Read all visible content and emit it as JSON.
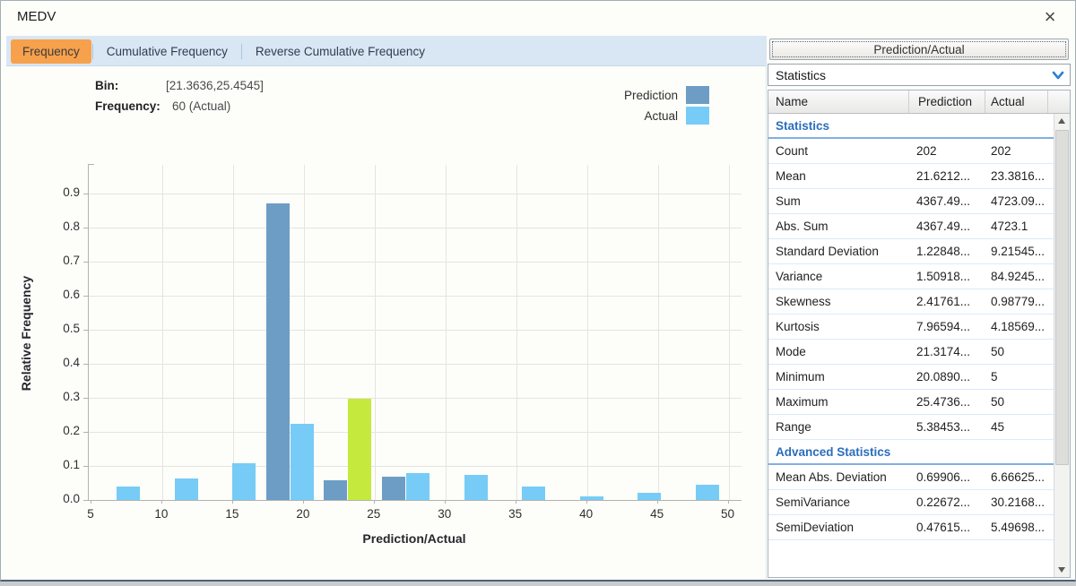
{
  "window": {
    "title": "MEDV",
    "close_icon": "×"
  },
  "colors": {
    "accent_orange": "#F7A14C",
    "prediction": "#6D9DC5",
    "actual": "#76CCF6",
    "highlight": "#C6E93E",
    "tabstrip_bg": "#D9E6F3",
    "section_text": "#2A6EBB"
  },
  "tabs": [
    {
      "label": "Frequency",
      "active": true
    },
    {
      "label": "Cumulative Frequency",
      "active": false
    },
    {
      "label": "Reverse Cumulative Frequency",
      "active": false
    }
  ],
  "info": {
    "bin_label": "Bin:",
    "bin_value": "[21.3636,25.4545]",
    "freq_label": "Frequency:",
    "freq_value": "60 (Actual)"
  },
  "legend": [
    {
      "label": "Prediction",
      "color": "#6D9DC5"
    },
    {
      "label": "Actual",
      "color": "#76CCF6"
    }
  ],
  "chart_data": {
    "type": "bar",
    "title": "",
    "xlabel": "Prediction/Actual",
    "ylabel": "Relative Frequency",
    "xlim": [
      5,
      50
    ],
    "ylim": [
      0,
      0.984
    ],
    "grid": true,
    "x_ticks": [
      5,
      10,
      15,
      20,
      25,
      30,
      35,
      40,
      45,
      50
    ],
    "y_ticks": [
      0.0,
      0.1,
      0.2,
      0.3,
      0.4,
      0.5,
      0.6,
      0.7,
      0.8,
      0.9
    ],
    "bin_edges": [
      5.0,
      9.0909,
      13.1818,
      17.2727,
      21.3636,
      25.4545,
      29.5455,
      33.6364,
      37.7273,
      41.8182,
      45.9091,
      50.0
    ],
    "series": [
      {
        "name": "Prediction",
        "color": "#6D9DC5",
        "values": [
          0,
          0,
          0,
          0.871,
          0.059,
          0.069,
          0,
          0,
          0,
          0,
          0
        ]
      },
      {
        "name": "Actual",
        "color": "#76CCF6",
        "values": [
          0.04,
          0.064,
          0.109,
          0.223,
          0.297,
          0.079,
          0.074,
          0.04,
          0.01,
          0.02,
          0.045
        ]
      }
    ],
    "highlight": {
      "series": "Actual",
      "bin_index": 4,
      "color": "#C6E93E",
      "bin": "[21.3636,25.4545]",
      "frequency": "60 (Actual)"
    }
  },
  "panel": {
    "header_button": "Prediction/Actual",
    "dropdown_value": "Statistics",
    "table": {
      "columns": [
        "Name",
        "Prediction",
        "Actual"
      ],
      "rows": [
        {
          "type": "section",
          "name": "Statistics"
        },
        {
          "type": "row",
          "name": "Count",
          "prediction": "202",
          "actual": "202"
        },
        {
          "type": "row",
          "name": "Mean",
          "prediction": "21.6212...",
          "actual": "23.3816..."
        },
        {
          "type": "row",
          "name": "Sum",
          "prediction": "4367.49...",
          "actual": "4723.09..."
        },
        {
          "type": "row",
          "name": "Abs. Sum",
          "prediction": "4367.49...",
          "actual": "4723.1"
        },
        {
          "type": "row",
          "name": "Standard Deviation",
          "prediction": "1.22848...",
          "actual": "9.21545..."
        },
        {
          "type": "row",
          "name": "Variance",
          "prediction": "1.50918...",
          "actual": "84.9245..."
        },
        {
          "type": "row",
          "name": "Skewness",
          "prediction": "2.41761...",
          "actual": "0.98779..."
        },
        {
          "type": "row",
          "name": "Kurtosis",
          "prediction": "7.96594...",
          "actual": "4.18569..."
        },
        {
          "type": "row",
          "name": "Mode",
          "prediction": "21.3174...",
          "actual": "50"
        },
        {
          "type": "row",
          "name": "Minimum",
          "prediction": "20.0890...",
          "actual": "5"
        },
        {
          "type": "row",
          "name": "Maximum",
          "prediction": "25.4736...",
          "actual": "50"
        },
        {
          "type": "row",
          "name": "Range",
          "prediction": "5.38453...",
          "actual": "45"
        },
        {
          "type": "section",
          "name": "Advanced Statistics"
        },
        {
          "type": "row",
          "name": "Mean Abs. Deviation",
          "prediction": "0.69906...",
          "actual": "6.66625..."
        },
        {
          "type": "row",
          "name": "SemiVariance",
          "prediction": "0.22672...",
          "actual": "30.2168..."
        },
        {
          "type": "row",
          "name": "SemiDeviation",
          "prediction": "0.47615...",
          "actual": "5.49698..."
        }
      ]
    }
  }
}
